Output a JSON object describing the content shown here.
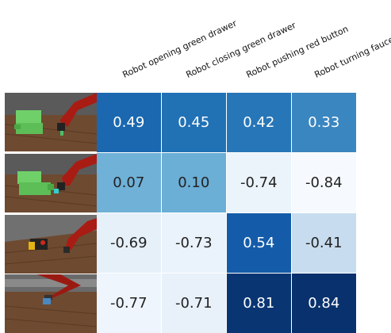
{
  "chart_data": {
    "type": "heatmap",
    "columns": [
      "Robot opening green drawer",
      "Robot closing green drawer",
      "Robot pushing red button",
      "Robot turning faucet"
    ],
    "rows": [
      {
        "image": "robot-arm-green-drawer-closed-thumbnail"
      },
      {
        "image": "robot-arm-green-drawer-open-thumbnail"
      },
      {
        "image": "robot-arm-red-button-thumbnail"
      },
      {
        "image": "robot-arm-faucet-thumbnail"
      }
    ],
    "values": [
      [
        0.49,
        0.45,
        0.42,
        0.33
      ],
      [
        0.07,
        0.1,
        -0.74,
        -0.84
      ],
      [
        -0.69,
        -0.73,
        0.54,
        -0.41
      ],
      [
        -0.77,
        -0.71,
        0.81,
        0.84
      ]
    ],
    "value_labels": [
      [
        "0.49",
        "0.45",
        "0.42",
        "0.33"
      ],
      [
        "0.07",
        "0.10",
        "-0.74",
        "-0.84"
      ],
      [
        "-0.69",
        "-0.73",
        "0.54",
        "-0.41"
      ],
      [
        "-0.77",
        "-0.71",
        "0.81",
        "0.84"
      ]
    ],
    "colormap": "Blues",
    "colors": {
      "dark": "#08306b",
      "mid": "#2c7bba",
      "light": "#eef5fc"
    },
    "grid": false,
    "legend": "none"
  }
}
